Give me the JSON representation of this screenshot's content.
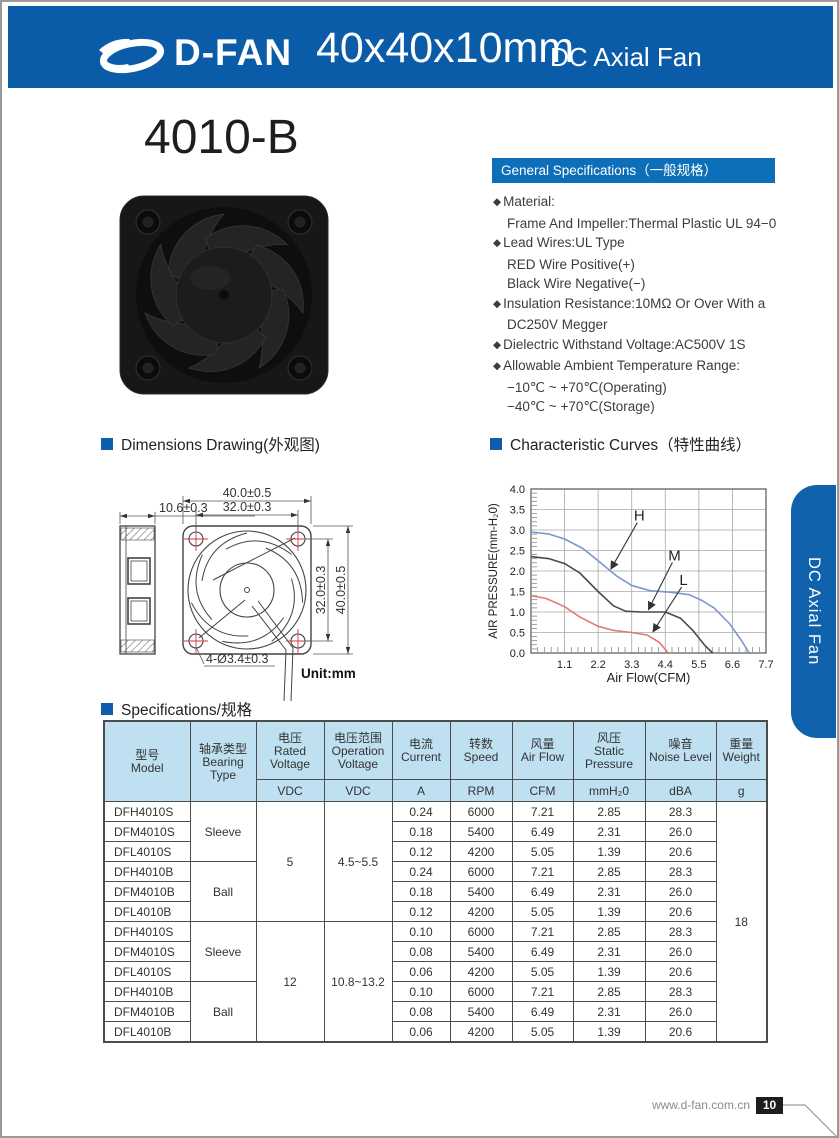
{
  "header": {
    "brand": "D-FAN",
    "title": "40x40x10mm",
    "subtitle": "DC Axial Fan"
  },
  "product": {
    "model": "4010-B"
  },
  "side_tab": {
    "label": "DC Axial Fan"
  },
  "colors": {
    "header_blue": "#0b5ca8",
    "bar_blue": "#0d6fba",
    "tab_blue": "#0f62ab",
    "table_header_blue": "#bfe0f1",
    "accent_square": "#0d5fae"
  },
  "general_specs": {
    "title": "General Specifications（一般规格）",
    "bullet_glyph": "◆",
    "items": [
      {
        "bullet": true,
        "text": "Material:"
      },
      {
        "bullet": false,
        "text": "Frame And Impeller:Thermal Plastic UL 94−0"
      },
      {
        "bullet": true,
        "text": "Lead Wires:UL Type"
      },
      {
        "bullet": false,
        "text": "RED Wire Positive(+)"
      },
      {
        "bullet": false,
        "text": "Black Wire Negative(−)"
      },
      {
        "bullet": true,
        "text": "Insulation Resistance:10MΩ Or Over With a"
      },
      {
        "bullet": false,
        "text": "DC250V Megger"
      },
      {
        "bullet": true,
        "text": "Dielectric Withstand Voltage:AC500V 1S"
      },
      {
        "bullet": true,
        "text": "Allowable Ambient Temperature Range:"
      },
      {
        "bullet": false,
        "text": "−10℃ ~ +70℃(Operating)"
      },
      {
        "bullet": false,
        "text": "−40℃ ~ +70℃(Storage)"
      }
    ]
  },
  "dimensions": {
    "title": "Dimensions Drawing(外观图)",
    "unit": "Unit:mm",
    "labels": {
      "depth": "10.6±0.3",
      "outer_width": "40.0±0.5",
      "hole_pitch_w": "32.0±0.3",
      "hole_pitch_h": "32.0±0.3",
      "outer_height": "40.0±0.5",
      "holes": "4-Ø3.4±0.3"
    }
  },
  "curves_section": {
    "title": "Characteristic Curves（特性曲线）"
  },
  "chart_data": {
    "type": "line",
    "title": "Characteristic Curves（特性曲线）",
    "xlabel": "Air Flow(CFM)",
    "ylabel": "AIR PRESSURE(mm-H₂0)",
    "xlim": [
      0,
      7.7
    ],
    "ylim": [
      0,
      4.0
    ],
    "xticks": [
      "1.1",
      "2.2",
      "3.3",
      "4.4",
      "5.5",
      "6.6",
      "7.7"
    ],
    "yticks": [
      "0.0",
      "0.5",
      "1.0",
      "1.5",
      "2.0",
      "2.5",
      "3.0",
      "3.5",
      "4.0"
    ],
    "grid": true,
    "legend_position": "inline-labels",
    "series": [
      {
        "name": "H",
        "color": "#7b97cf",
        "points": [
          [
            0,
            2.95
          ],
          [
            0.6,
            2.9
          ],
          [
            1.1,
            2.78
          ],
          [
            1.7,
            2.55
          ],
          [
            2.2,
            2.25
          ],
          [
            2.8,
            1.88
          ],
          [
            3.3,
            1.65
          ],
          [
            3.9,
            1.52
          ],
          [
            4.6,
            1.48
          ],
          [
            5.2,
            1.42
          ],
          [
            5.6,
            1.28
          ],
          [
            6.0,
            1.1
          ],
          [
            6.5,
            0.72
          ],
          [
            6.9,
            0.3
          ],
          [
            7.15,
            0
          ]
        ]
      },
      {
        "name": "M",
        "color": "#4a4a4a",
        "points": [
          [
            0,
            2.35
          ],
          [
            0.6,
            2.3
          ],
          [
            1.1,
            2.18
          ],
          [
            1.6,
            1.95
          ],
          [
            2.2,
            1.5
          ],
          [
            2.7,
            1.15
          ],
          [
            3.1,
            1.02
          ],
          [
            3.6,
            1.0
          ],
          [
            4.4,
            1.0
          ],
          [
            4.9,
            0.85
          ],
          [
            5.3,
            0.55
          ],
          [
            5.7,
            0.18
          ],
          [
            5.95,
            0
          ]
        ]
      },
      {
        "name": "L",
        "color": "#e07a73",
        "points": [
          [
            0,
            1.4
          ],
          [
            0.5,
            1.33
          ],
          [
            1.1,
            1.13
          ],
          [
            1.6,
            0.88
          ],
          [
            2.2,
            0.65
          ],
          [
            2.7,
            0.55
          ],
          [
            3.3,
            0.5
          ],
          [
            3.8,
            0.44
          ],
          [
            4.2,
            0.26
          ],
          [
            4.5,
            0
          ]
        ]
      }
    ],
    "labels": [
      {
        "text": "H",
        "x": 3.55,
        "y": 3.35,
        "ax": 2.62,
        "ay": 2.05
      },
      {
        "text": "M",
        "x": 4.7,
        "y": 2.38,
        "ax": 3.85,
        "ay": 1.06
      },
      {
        "text": "L",
        "x": 5.0,
        "y": 1.78,
        "ax": 4.0,
        "ay": 0.52
      }
    ]
  },
  "spec_table": {
    "title": "Specifications/规格",
    "headers": [
      {
        "cn": "型号",
        "en": "Model"
      },
      {
        "cn": "轴承类型",
        "en": "Bearing Type"
      },
      {
        "cn": "电压",
        "en": "Rated Voltage",
        "unit": "VDC"
      },
      {
        "cn": "电压范围",
        "en": "Operation Voltage",
        "unit": "VDC"
      },
      {
        "cn": "电流",
        "en": "Current",
        "unit": "A"
      },
      {
        "cn": "转数",
        "en": "Speed",
        "unit": "RPM"
      },
      {
        "cn": "风量",
        "en": "Air Flow",
        "unit": "CFM"
      },
      {
        "cn": "风压",
        "en": "Static Pressure",
        "unit": "mmH₂0"
      },
      {
        "cn": "噪音",
        "en": "Noise Level",
        "unit": "dBA"
      },
      {
        "cn": "重量",
        "en": "Weight",
        "unit": "g"
      }
    ],
    "rows": [
      {
        "model": "DFH4010S",
        "current": "0.24",
        "speed": "6000",
        "airflow": "7.21",
        "pressure": "2.85",
        "noise": "28.3"
      },
      {
        "model": "DFM4010S",
        "current": "0.18",
        "speed": "5400",
        "airflow": "6.49",
        "pressure": "2.31",
        "noise": "26.0"
      },
      {
        "model": "DFL4010S",
        "current": "0.12",
        "speed": "4200",
        "airflow": "5.05",
        "pressure": "1.39",
        "noise": "20.6"
      },
      {
        "model": "DFH4010B",
        "current": "0.24",
        "speed": "6000",
        "airflow": "7.21",
        "pressure": "2.85",
        "noise": "28.3"
      },
      {
        "model": "DFM4010B",
        "current": "0.18",
        "speed": "5400",
        "airflow": "6.49",
        "pressure": "2.31",
        "noise": "26.0"
      },
      {
        "model": "DFL4010B",
        "current": "0.12",
        "speed": "4200",
        "airflow": "5.05",
        "pressure": "1.39",
        "noise": "20.6"
      },
      {
        "model": "DFH4010S",
        "current": "0.10",
        "speed": "6000",
        "airflow": "7.21",
        "pressure": "2.85",
        "noise": "28.3"
      },
      {
        "model": "DFM4010S",
        "current": "0.08",
        "speed": "5400",
        "airflow": "6.49",
        "pressure": "2.31",
        "noise": "26.0"
      },
      {
        "model": "DFL4010S",
        "current": "0.06",
        "speed": "4200",
        "airflow": "5.05",
        "pressure": "1.39",
        "noise": "20.6"
      },
      {
        "model": "DFH4010B",
        "current": "0.10",
        "speed": "6000",
        "airflow": "7.21",
        "pressure": "2.85",
        "noise": "28.3"
      },
      {
        "model": "DFM4010B",
        "current": "0.08",
        "speed": "5400",
        "airflow": "6.49",
        "pressure": "2.31",
        "noise": "26.0"
      },
      {
        "model": "DFL4010B",
        "current": "0.06",
        "speed": "4200",
        "airflow": "5.05",
        "pressure": "1.39",
        "noise": "20.6"
      }
    ],
    "bearing_groups": [
      {
        "label": "Sleeve",
        "start": 0,
        "span": 3
      },
      {
        "label": "Ball",
        "start": 3,
        "span": 3
      },
      {
        "label": "Sleeve",
        "start": 6,
        "span": 3
      },
      {
        "label": "Ball",
        "start": 9,
        "span": 3
      }
    ],
    "voltage_groups": [
      {
        "rated": "5",
        "operation": "4.5~5.5",
        "start": 0,
        "span": 6
      },
      {
        "rated": "12",
        "operation": "10.8~13.2",
        "start": 6,
        "span": 6
      }
    ],
    "weight": {
      "value": "18",
      "span": 12
    }
  },
  "footer": {
    "url": "www.d-fan.com.cn",
    "page": "10"
  }
}
